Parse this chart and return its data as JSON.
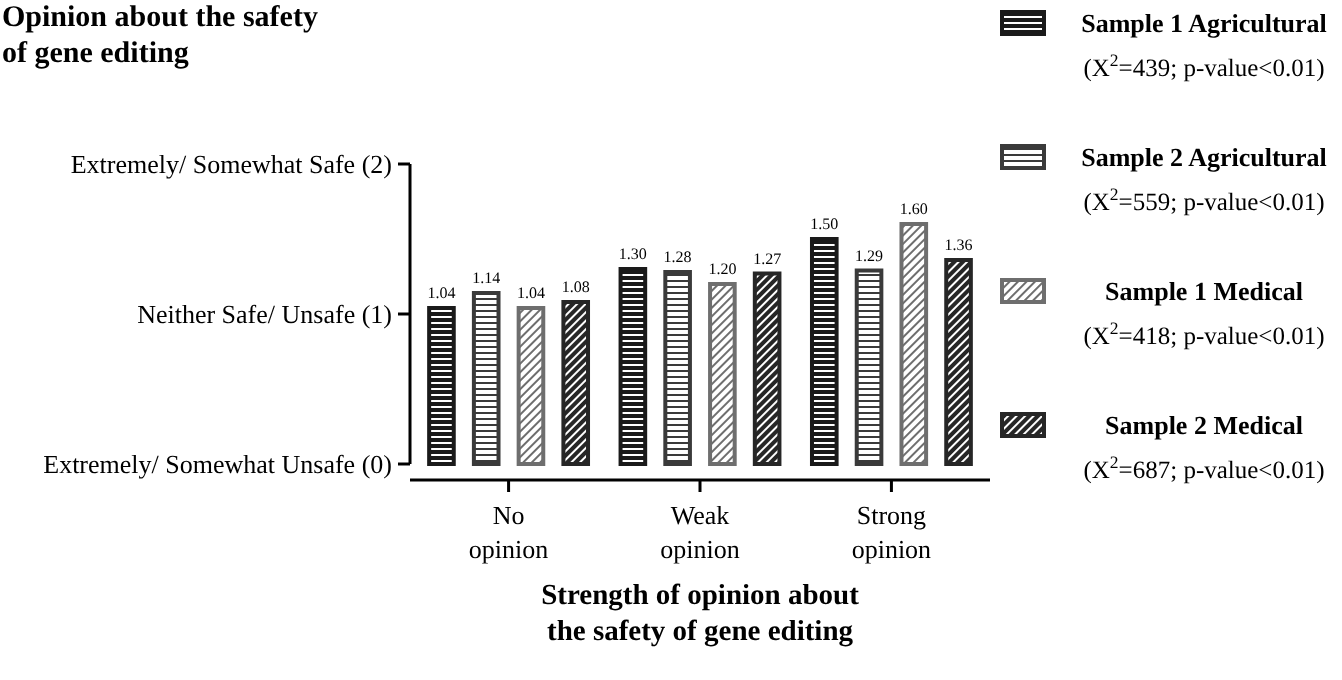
{
  "chart_data": {
    "type": "bar",
    "title": "Opinion about the safety of gene editing",
    "xlabel": "Strength of opinion about the safety of gene editing",
    "categories": [
      "No opinion",
      "Weak opinion",
      "Strong opinion"
    ],
    "series": [
      {
        "name": "Sample 1 Agricultural",
        "color": "#1a1a1a",
        "values": [
          1.04,
          1.3,
          1.5
        ],
        "value_labels": [
          "1.04",
          "1.30",
          "1.50"
        ]
      },
      {
        "name": "Sample 2 Agricultural",
        "color": "#3a3a3a",
        "values": [
          1.14,
          1.28,
          1.29
        ],
        "value_labels": [
          "1.14",
          "1.28",
          "1.29"
        ]
      },
      {
        "name": "Sample 1 Medical",
        "color": "#6e6e6e",
        "values": [
          1.04,
          1.2,
          1.6
        ],
        "value_labels": [
          "1.04",
          "1.20",
          "1.60"
        ]
      },
      {
        "name": "Sample 2 Medical",
        "color": "#262626",
        "values": [
          1.08,
          1.27,
          1.36
        ],
        "value_labels": [
          "1.08",
          "1.27",
          "1.36"
        ]
      }
    ],
    "ylim": [
      0,
      2
    ],
    "yticks": [
      {
        "value": 0,
        "label": "Extremely/ Somewhat Unsafe (0)"
      },
      {
        "value": 1,
        "label": "Neither Safe/ Unsafe (1)"
      },
      {
        "value": 2,
        "label": "Extremely/ Somewhat Safe (2)"
      }
    ],
    "legend": "right",
    "grid": false,
    "annotations": [
      "(X$^{2}$=439; p-value<0.01)",
      "(X$^{2}$=559; p-value<0.01)",
      "(X$^{2}$=418; p-value<0.01)",
      "(X$^{2}$=687; p-value<0.01)"
    ]
  }
}
